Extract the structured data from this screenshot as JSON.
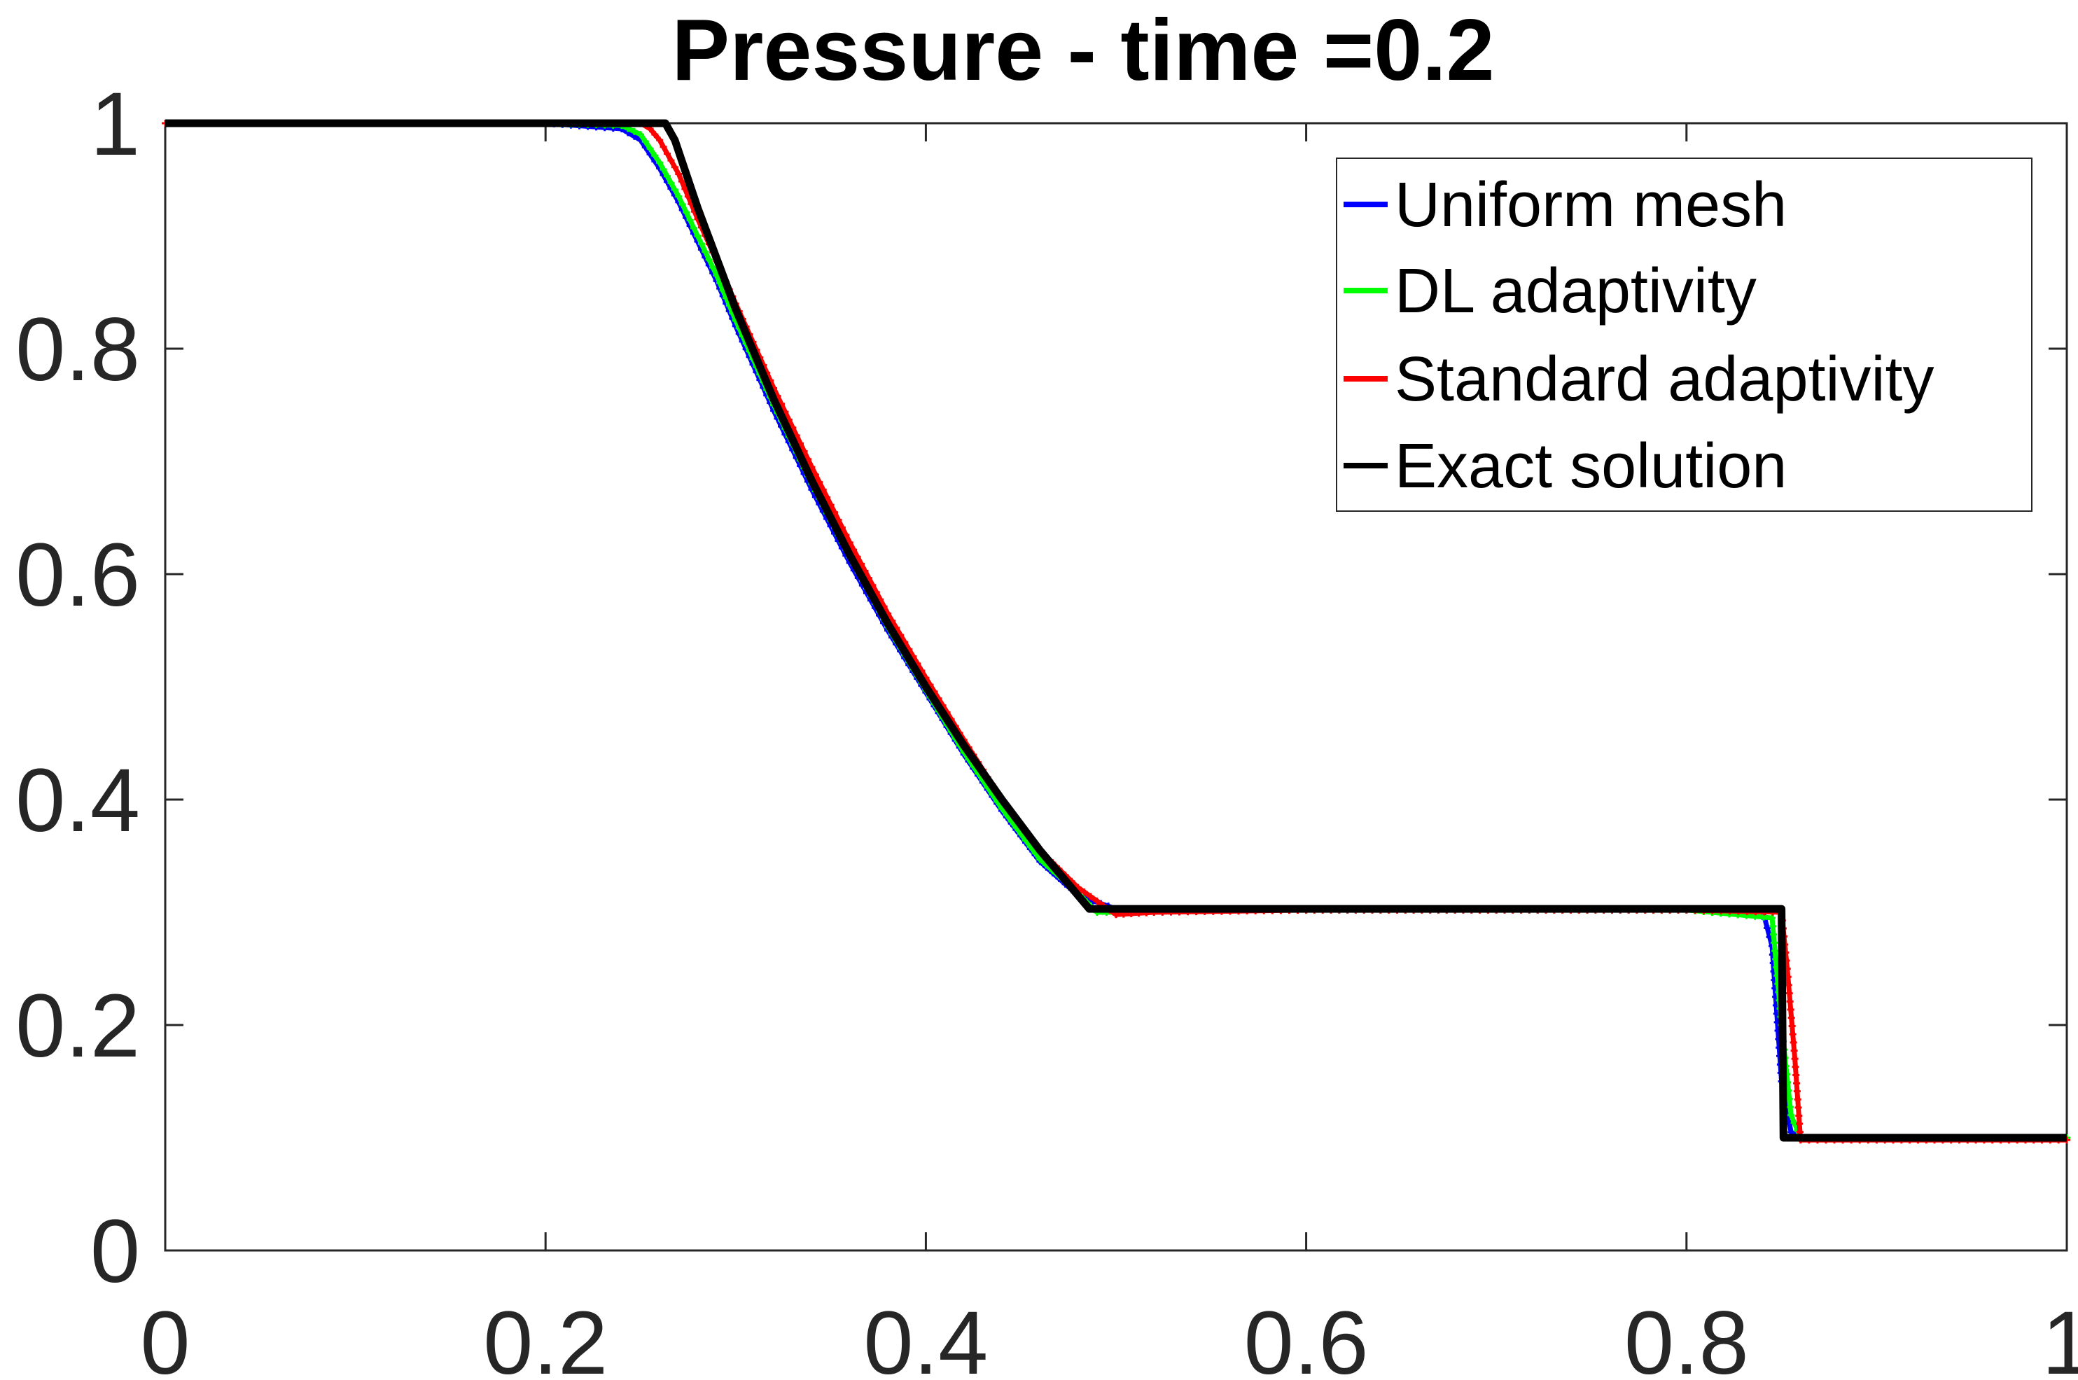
{
  "chart_data": {
    "type": "line",
    "title": "Pressure - time =0.2",
    "xlabel": "",
    "ylabel": "",
    "xlim": [
      0,
      1
    ],
    "ylim": [
      0,
      1
    ],
    "xticks": [
      "0",
      "0.2",
      "0.4",
      "0.6",
      "0.8",
      "1"
    ],
    "yticks": [
      "0",
      "0.2",
      "0.4",
      "0.6",
      "0.8",
      "1"
    ],
    "grid": false,
    "legend_position": "top-right",
    "series": [
      {
        "name": "Uniform mesh",
        "color": "#0000ff",
        "marker": "plus",
        "x": [
          0,
          0.1,
          0.2,
          0.24,
          0.25,
          0.26,
          0.27,
          0.28,
          0.29,
          0.3,
          0.32,
          0.34,
          0.36,
          0.38,
          0.4,
          0.42,
          0.44,
          0.46,
          0.48,
          0.5,
          0.52,
          0.6,
          0.7,
          0.8,
          0.84,
          0.845,
          0.85,
          0.855,
          0.86,
          0.9,
          1.0
        ],
        "y": [
          1.0,
          1.0,
          1.0,
          0.995,
          0.985,
          0.96,
          0.93,
          0.895,
          0.86,
          0.82,
          0.745,
          0.675,
          0.61,
          0.55,
          0.495,
          0.44,
          0.39,
          0.345,
          0.315,
          0.303,
          0.303,
          0.302,
          0.302,
          0.302,
          0.302,
          0.27,
          0.15,
          0.105,
          0.1,
          0.1,
          0.1
        ]
      },
      {
        "name": "DL adaptivity",
        "color": "#00ff00",
        "marker": "plus",
        "x": [
          0,
          0.1,
          0.2,
          0.24,
          0.25,
          0.26,
          0.27,
          0.28,
          0.29,
          0.3,
          0.32,
          0.34,
          0.36,
          0.38,
          0.4,
          0.42,
          0.44,
          0.46,
          0.48,
          0.49,
          0.5,
          0.52,
          0.6,
          0.7,
          0.8,
          0.845,
          0.85,
          0.855,
          0.86,
          0.9,
          1.0
        ],
        "y": [
          1.0,
          1.0,
          1.0,
          0.998,
          0.99,
          0.965,
          0.935,
          0.9,
          0.865,
          0.825,
          0.75,
          0.68,
          0.615,
          0.553,
          0.497,
          0.442,
          0.392,
          0.347,
          0.317,
          0.3,
          0.3,
          0.302,
          0.302,
          0.302,
          0.302,
          0.295,
          0.2,
          0.12,
          0.1,
          0.1,
          0.1
        ]
      },
      {
        "name": "Standard adaptivity",
        "color": "#ff0000",
        "marker": "plus",
        "x": [
          0,
          0.1,
          0.2,
          0.25,
          0.255,
          0.26,
          0.27,
          0.28,
          0.29,
          0.3,
          0.32,
          0.34,
          0.36,
          0.38,
          0.4,
          0.42,
          0.44,
          0.46,
          0.48,
          0.49,
          0.5,
          0.52,
          0.6,
          0.7,
          0.8,
          0.85,
          0.853,
          0.857,
          0.86,
          0.9,
          1.0
        ],
        "y": [
          1.0,
          1.0,
          1.0,
          1.0,
          0.995,
          0.985,
          0.955,
          0.915,
          0.878,
          0.84,
          0.765,
          0.695,
          0.628,
          0.565,
          0.508,
          0.453,
          0.4,
          0.355,
          0.322,
          0.31,
          0.298,
          0.3,
          0.302,
          0.302,
          0.302,
          0.3,
          0.25,
          0.17,
          0.098,
          0.098,
          0.098
        ]
      },
      {
        "name": "Exact solution",
        "color": "#000000",
        "marker": "none",
        "x": [
          0,
          0.263,
          0.268,
          0.28,
          0.3,
          0.32,
          0.34,
          0.36,
          0.38,
          0.4,
          0.42,
          0.44,
          0.46,
          0.486,
          0.6,
          0.7,
          0.8,
          0.85,
          0.851,
          1.0
        ],
        "y": [
          1.0,
          1.0,
          0.985,
          0.925,
          0.835,
          0.755,
          0.683,
          0.617,
          0.556,
          0.5,
          0.448,
          0.4,
          0.355,
          0.303,
          0.303,
          0.303,
          0.303,
          0.303,
          0.1,
          0.1
        ]
      }
    ]
  }
}
